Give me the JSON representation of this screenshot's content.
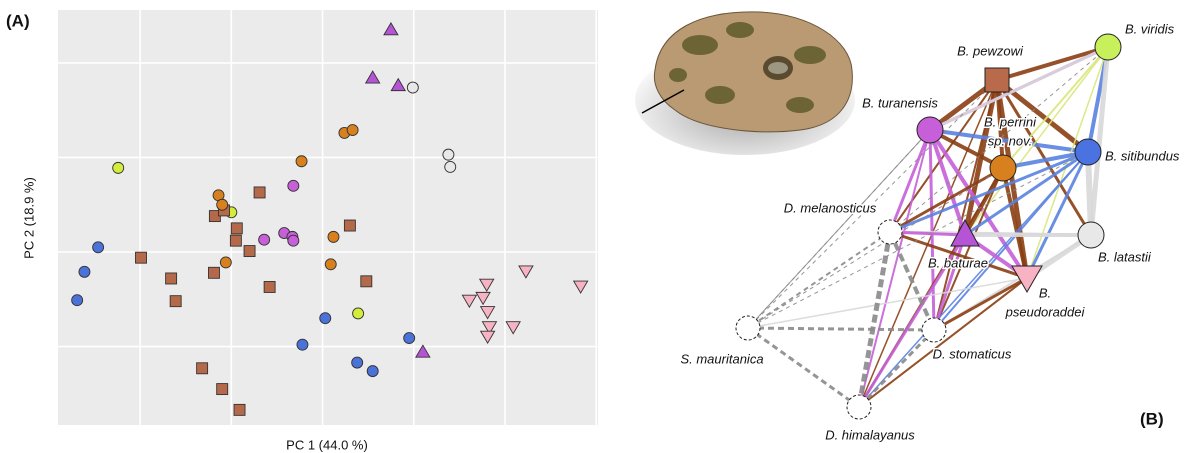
{
  "chart_data": {
    "type": "scatter",
    "panel_label": "(A)",
    "x_label": "PC 1 (44.0 %)",
    "y_label": "PC 2 (18.9 %)",
    "xlim": [
      -0.9,
      5.02
    ],
    "ylim": [
      -1.83,
      2.56
    ],
    "xgrid": [
      0,
      1,
      2,
      3,
      4,
      5
    ],
    "ygrid": [
      -1,
      0,
      1,
      2
    ],
    "grid": true,
    "series": [
      {
        "color": "#4a72d9",
        "marker": "circle",
        "x": [
          -0.46,
          -0.61,
          -0.69,
          2.03,
          1.78,
          2.38,
          2.55,
          2.95
        ],
        "values": [
          0.05,
          -0.21,
          -0.51,
          -0.7,
          -0.98,
          -1.17,
          -1.26,
          -0.91
        ]
      },
      {
        "color": "#d4ec3a",
        "marker": "circle",
        "x": [
          -0.24,
          1.0,
          2.39
        ],
        "values": [
          0.89,
          0.42,
          -0.65
        ]
      },
      {
        "color": "#b46a4a",
        "marker": "square",
        "x": [
          0.01,
          0.34,
          0.39,
          0.82,
          0.92,
          1.06,
          0.81,
          1.2,
          1.31,
          1.42,
          1.05,
          2.3,
          2.48,
          0.68,
          0.9,
          1.09
        ],
        "values": [
          -0.06,
          -0.28,
          -0.52,
          0.38,
          0.44,
          0.25,
          -0.22,
          0.01,
          0.63,
          -0.37,
          0.12,
          0.28,
          -0.31,
          -1.23,
          -1.45,
          -1.67
        ]
      },
      {
        "color": "#d9801e",
        "marker": "circle",
        "x": [
          2.24,
          2.33,
          1.77,
          0.86,
          0.9,
          2.12,
          0.94,
          2.09
        ],
        "values": [
          1.26,
          1.29,
          0.96,
          0.6,
          0.5,
          0.16,
          -0.11,
          -0.13
        ]
      },
      {
        "color": "#c65fd8",
        "marker": "circle",
        "x": [
          1.68,
          1.36,
          1.58,
          1.67,
          1.68
        ],
        "values": [
          0.7,
          0.13,
          0.2,
          0.16,
          0.12
        ]
      },
      {
        "color": "#b555d6",
        "marker": "triangle-up",
        "x": [
          2.75,
          2.55,
          2.83,
          3.1
        ],
        "values": [
          2.35,
          1.84,
          1.76,
          -1.06
        ]
      },
      {
        "color": "#e8e8e8",
        "marker": "circle",
        "x": [
          2.99,
          3.38,
          3.4
        ],
        "values": [
          1.74,
          1.03,
          0.9
        ]
      },
      {
        "color": "#f7b3c4",
        "marker": "triangle-down",
        "x": [
          3.8,
          4.23,
          4.83,
          3.61,
          3.76,
          3.81,
          3.83,
          4.09,
          3.81
        ],
        "values": [
          -0.34,
          -0.2,
          -0.36,
          -0.51,
          -0.48,
          -0.63,
          -0.79,
          -0.79,
          -0.89
        ]
      }
    ]
  },
  "network": {
    "panel_label": "(B)",
    "nodes": [
      {
        "label_lines": [
          "B. viridis"
        ]
      },
      {
        "label_lines": [
          "B. pewzowi"
        ]
      },
      {
        "label_lines": [
          "B. turanensis"
        ]
      },
      {
        "label_lines": [
          "B. perrini",
          "sp. nov."
        ]
      },
      {
        "label_lines": [
          "B. sitibundus"
        ]
      },
      {
        "label_lines": [
          "D. melanosticus"
        ]
      },
      {
        "label_lines": [
          "B. latastii"
        ]
      },
      {
        "label_lines": [
          "B. baturae"
        ]
      },
      {
        "label_lines": [
          "B.",
          "pseudoraddei"
        ]
      },
      {
        "label_lines": [
          "S. mauritanica"
        ]
      },
      {
        "label_lines": [
          "D. stomaticus"
        ]
      },
      {
        "label_lines": [
          "D. himalayanus"
        ]
      }
    ]
  }
}
